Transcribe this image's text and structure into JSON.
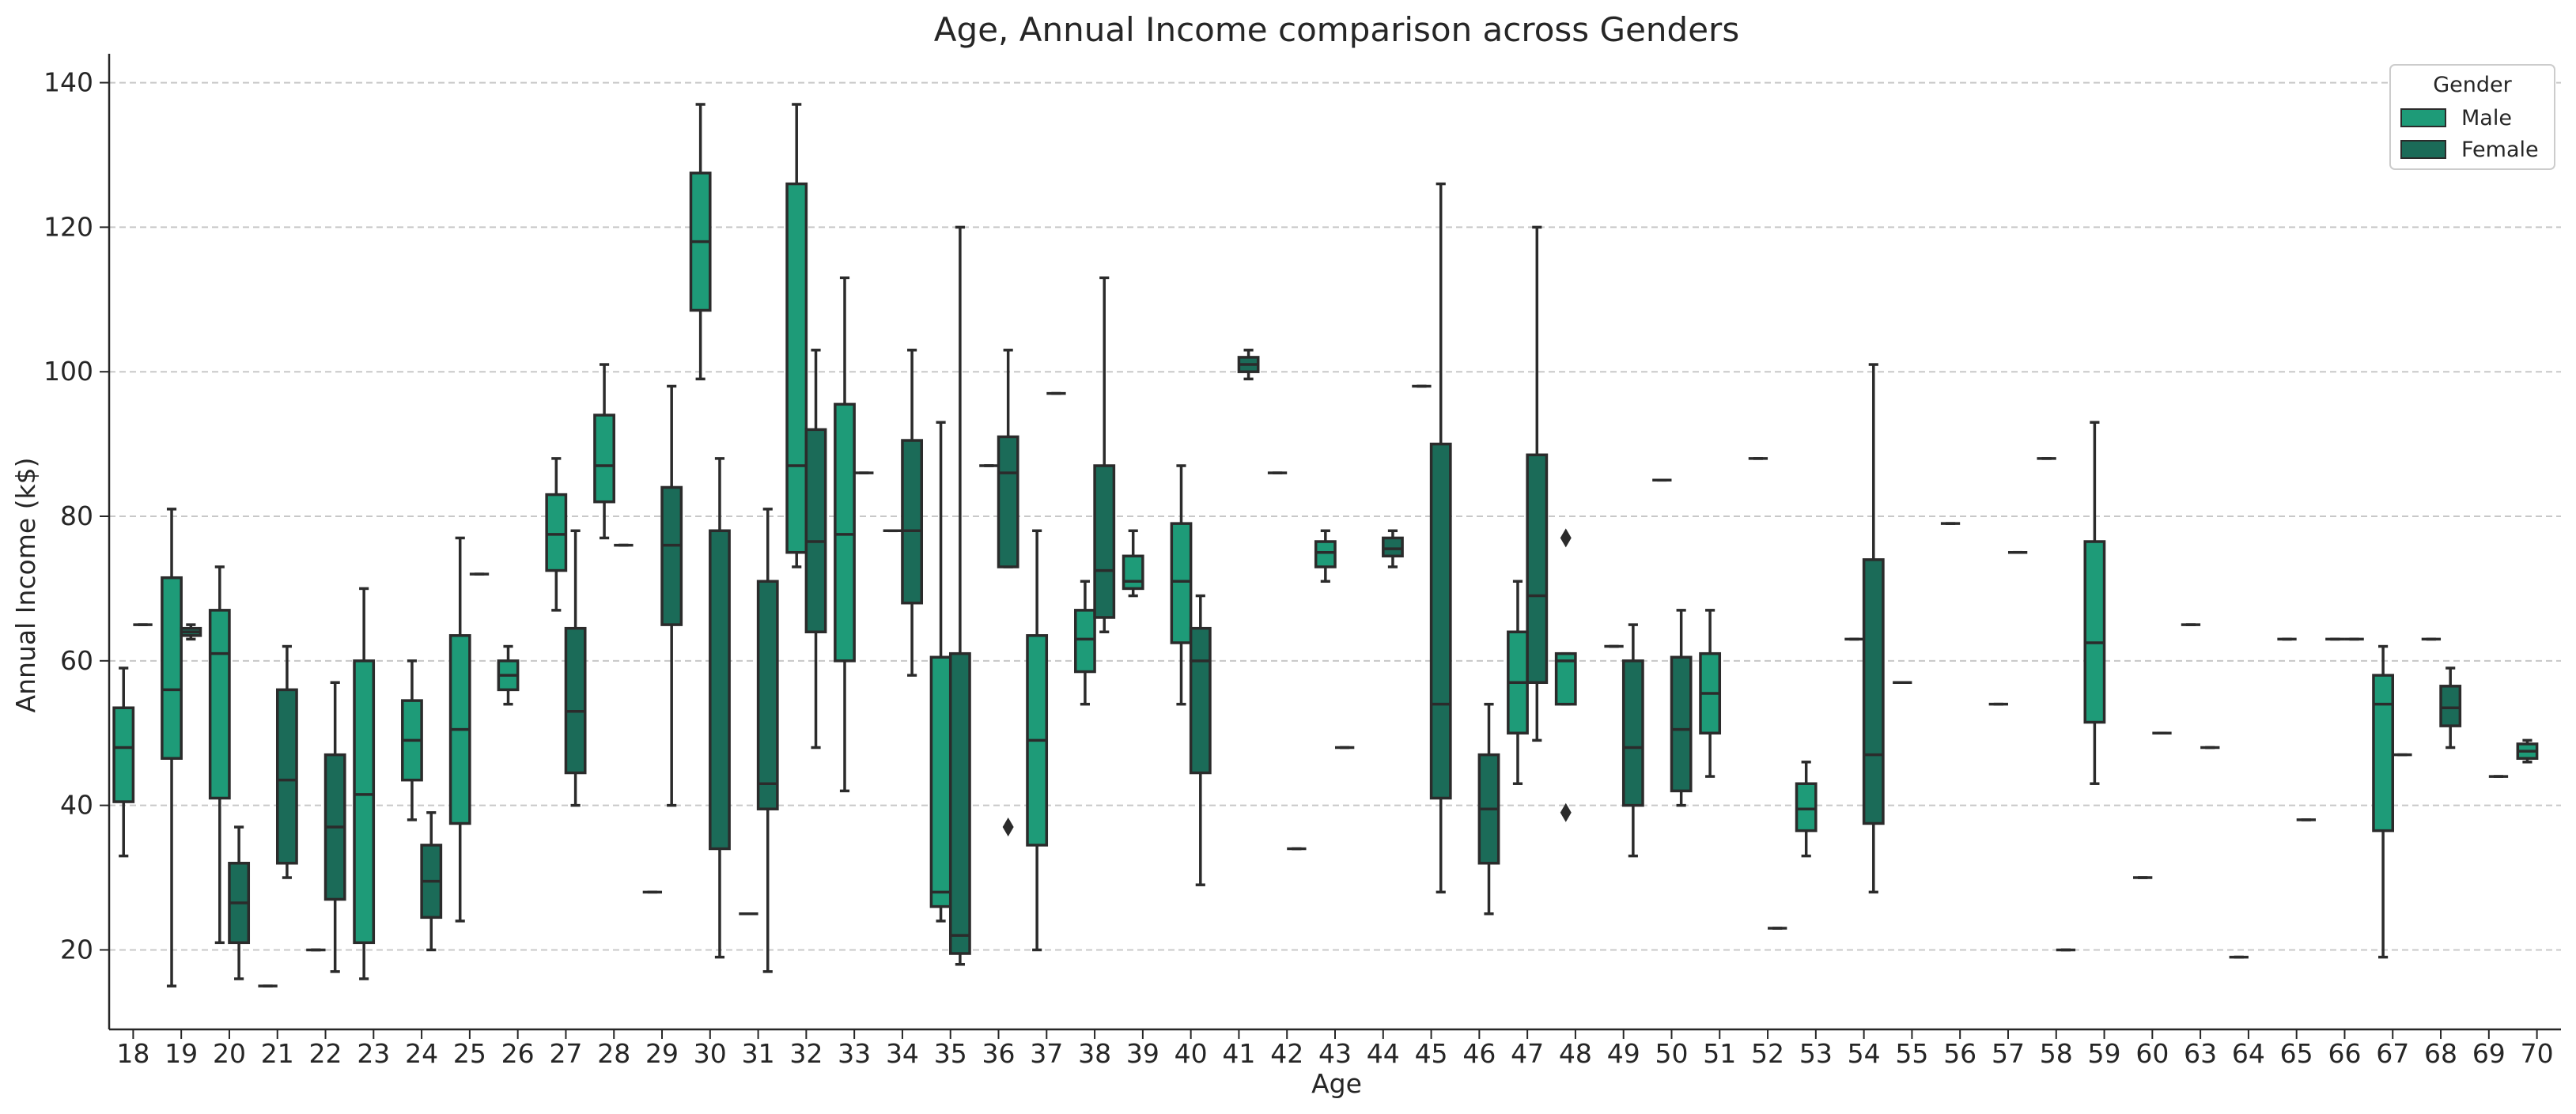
{
  "chart_data": {
    "type": "box",
    "title": "Age, Annual Income comparison across Genders",
    "xlabel": "Age",
    "ylabel": "Annual Income (k$)",
    "ylim": [
      9,
      144
    ],
    "yticks": [
      20,
      40,
      60,
      80,
      100,
      120,
      140
    ],
    "grid": "horizontal dashed",
    "legend": {
      "title": "Gender",
      "position": "top-right",
      "entries": [
        {
          "name": "Male",
          "color": "#1e9b78"
        },
        {
          "name": "Female",
          "color": "#1b6b58"
        }
      ]
    },
    "categories": [
      "18",
      "19",
      "20",
      "21",
      "22",
      "23",
      "24",
      "25",
      "26",
      "27",
      "28",
      "29",
      "30",
      "31",
      "32",
      "33",
      "34",
      "35",
      "36",
      "37",
      "38",
      "39",
      "40",
      "41",
      "42",
      "43",
      "44",
      "45",
      "46",
      "47",
      "48",
      "49",
      "50",
      "51",
      "52",
      "53",
      "54",
      "55",
      "56",
      "57",
      "58",
      "59",
      "60",
      "63",
      "64",
      "65",
      "66",
      "67",
      "68",
      "69",
      "70"
    ],
    "series": [
      {
        "name": "Male",
        "color": "#1e9b78",
        "boxes": [
          {
            "age": "18",
            "whislo": 33,
            "q1": 40.5,
            "med": 48,
            "q3": 53.5,
            "whishi": 59
          },
          {
            "age": "19",
            "whislo": 15,
            "q1": 46.5,
            "med": 56,
            "q3": 71.5,
            "whishi": 81
          },
          {
            "age": "20",
            "whislo": 21,
            "q1": 41,
            "med": 61,
            "q3": 67,
            "whishi": 73
          },
          {
            "age": "21",
            "whislo": 15,
            "q1": 15,
            "med": 15,
            "q3": 15,
            "whishi": 15
          },
          {
            "age": "22",
            "whislo": 20,
            "q1": 20,
            "med": 20,
            "q3": 20,
            "whishi": 20
          },
          {
            "age": "23",
            "whislo": 16,
            "q1": 21,
            "med": 41.5,
            "q3": 60,
            "whishi": 70
          },
          {
            "age": "24",
            "whislo": 38,
            "q1": 43.5,
            "med": 49,
            "q3": 54.5,
            "whishi": 60
          },
          {
            "age": "25",
            "whislo": 24,
            "q1": 37.5,
            "med": 50.5,
            "q3": 63.5,
            "whishi": 77
          },
          {
            "age": "26",
            "whislo": 54,
            "q1": 56,
            "med": 58,
            "q3": 60,
            "whishi": 62
          },
          {
            "age": "27",
            "whislo": 67,
            "q1": 72.5,
            "med": 77.5,
            "q3": 83,
            "whishi": 88
          },
          {
            "age": "28",
            "whislo": 77,
            "q1": 82,
            "med": 87,
            "q3": 94,
            "whishi": 101
          },
          {
            "age": "29",
            "whislo": 28,
            "q1": 28,
            "med": 28,
            "q3": 28,
            "whishi": 28
          },
          {
            "age": "30",
            "whislo": 99,
            "q1": 108.5,
            "med": 118,
            "q3": 127.5,
            "whishi": 137
          },
          {
            "age": "31",
            "whislo": 25,
            "q1": 25,
            "med": 25,
            "q3": 25,
            "whishi": 25
          },
          {
            "age": "32",
            "whislo": 73,
            "q1": 75,
            "med": 87,
            "q3": 126,
            "whishi": 137
          },
          {
            "age": "33",
            "whislo": 42,
            "q1": 60,
            "med": 77.5,
            "q3": 95.5,
            "whishi": 113
          },
          {
            "age": "34",
            "whislo": 78,
            "q1": 78,
            "med": 78,
            "q3": 78,
            "whishi": 78
          },
          {
            "age": "35",
            "whislo": 24,
            "q1": 26,
            "med": 28,
            "q3": 60.5,
            "whishi": 93
          },
          {
            "age": "36",
            "whislo": 87,
            "q1": 87,
            "med": 87,
            "q3": 87,
            "whishi": 87
          },
          {
            "age": "37",
            "whislo": 20,
            "q1": 34.5,
            "med": 49,
            "q3": 63.5,
            "whishi": 78
          },
          {
            "age": "38",
            "whislo": 54,
            "q1": 58.5,
            "med": 63,
            "q3": 67,
            "whishi": 71
          },
          {
            "age": "39",
            "whislo": 69,
            "q1": 70,
            "med": 71,
            "q3": 74.5,
            "whishi": 78
          },
          {
            "age": "40",
            "whislo": 54,
            "q1": 62.5,
            "med": 71,
            "q3": 79,
            "whishi": 87
          },
          {
            "age": "42",
            "whislo": 86,
            "q1": 86,
            "med": 86,
            "q3": 86,
            "whishi": 86
          },
          {
            "age": "43",
            "whislo": 71,
            "q1": 73,
            "med": 75,
            "q3": 76.5,
            "whishi": 78
          },
          {
            "age": "45",
            "whislo": 98,
            "q1": 98,
            "med": 98,
            "q3": 98,
            "whishi": 98
          },
          {
            "age": "47",
            "whislo": 43,
            "q1": 50,
            "med": 57,
            "q3": 64,
            "whishi": 71
          },
          {
            "age": "48",
            "whislo": 54,
            "q1": 54,
            "med": 60,
            "q3": 61,
            "whishi": 61,
            "fliers": [
              39,
              77
            ]
          },
          {
            "age": "49",
            "whislo": 62,
            "q1": 62,
            "med": 62,
            "q3": 62,
            "whishi": 62
          },
          {
            "age": "50",
            "whislo": 85,
            "q1": 85,
            "med": 85,
            "q3": 85,
            "whishi": 85
          },
          {
            "age": "51",
            "whislo": 44,
            "q1": 50,
            "med": 55.5,
            "q3": 61,
            "whishi": 67
          },
          {
            "age": "52",
            "whislo": 88,
            "q1": 88,
            "med": 88,
            "q3": 88,
            "whishi": 88
          },
          {
            "age": "53",
            "whislo": 33,
            "q1": 36.5,
            "med": 39.5,
            "q3": 43,
            "whishi": 46
          },
          {
            "age": "54",
            "whislo": 63,
            "q1": 63,
            "med": 63,
            "q3": 63,
            "whishi": 63
          },
          {
            "age": "55",
            "whislo": 57,
            "q1": 57,
            "med": 57,
            "q3": 57,
            "whishi": 57
          },
          {
            "age": "56",
            "whislo": 79,
            "q1": 79,
            "med": 79,
            "q3": 79,
            "whishi": 79
          },
          {
            "age": "57",
            "whislo": 54,
            "q1": 54,
            "med": 54,
            "q3": 54,
            "whishi": 54
          },
          {
            "age": "58",
            "whislo": 88,
            "q1": 88,
            "med": 88,
            "q3": 88,
            "whishi": 88
          },
          {
            "age": "59",
            "whislo": 43,
            "q1": 51.5,
            "med": 62.5,
            "q3": 76.5,
            "whishi": 93
          },
          {
            "age": "60",
            "whislo": 30,
            "q1": 30,
            "med": 30,
            "q3": 30,
            "whishi": 30
          },
          {
            "age": "63",
            "whislo": 65,
            "q1": 65,
            "med": 65,
            "q3": 65,
            "whishi": 65
          },
          {
            "age": "64",
            "whislo": 19,
            "q1": 19,
            "med": 19,
            "q3": 19,
            "whishi": 19
          },
          {
            "age": "65",
            "whislo": 63,
            "q1": 63,
            "med": 63,
            "q3": 63,
            "whishi": 63
          },
          {
            "age": "66",
            "whislo": 63,
            "q1": 63,
            "med": 63,
            "q3": 63,
            "whishi": 63
          },
          {
            "age": "67",
            "whislo": 19,
            "q1": 36.5,
            "med": 54,
            "q3": 58,
            "whishi": 62
          },
          {
            "age": "68",
            "whislo": 63,
            "q1": 63,
            "med": 63,
            "q3": 63,
            "whishi": 63
          },
          {
            "age": "70",
            "whislo": 46,
            "q1": 46.5,
            "med": 47.5,
            "q3": 48.5,
            "whishi": 49
          }
        ]
      },
      {
        "name": "Female",
        "color": "#1b6b58",
        "boxes": [
          {
            "age": "18",
            "whislo": 65,
            "q1": 65,
            "med": 65,
            "q3": 65,
            "whishi": 65
          },
          {
            "age": "19",
            "whislo": 63,
            "q1": 63.5,
            "med": 64,
            "q3": 64.5,
            "whishi": 65
          },
          {
            "age": "20",
            "whislo": 16,
            "q1": 21,
            "med": 26.5,
            "q3": 32,
            "whishi": 37
          },
          {
            "age": "21",
            "whislo": 30,
            "q1": 32,
            "med": 43.5,
            "q3": 56,
            "whishi": 62
          },
          {
            "age": "22",
            "whislo": 17,
            "q1": 27,
            "med": 37,
            "q3": 47,
            "whishi": 57
          },
          {
            "age": "24",
            "whislo": 20,
            "q1": 24.5,
            "med": 29.5,
            "q3": 34.5,
            "whishi": 39
          },
          {
            "age": "25",
            "whislo": 72,
            "q1": 72,
            "med": 72,
            "q3": 72,
            "whishi": 72
          },
          {
            "age": "27",
            "whislo": 40,
            "q1": 44.5,
            "med": 53,
            "q3": 64.5,
            "whishi": 78
          },
          {
            "age": "28",
            "whislo": 76,
            "q1": 76,
            "med": 76,
            "q3": 76,
            "whishi": 76
          },
          {
            "age": "29",
            "whislo": 40,
            "q1": 65,
            "med": 76,
            "q3": 84,
            "whishi": 98
          },
          {
            "age": "30",
            "whislo": 19,
            "q1": 34,
            "med": 78,
            "q3": 78,
            "whishi": 88
          },
          {
            "age": "31",
            "whislo": 17,
            "q1": 39.5,
            "med": 43,
            "q3": 71,
            "whishi": 81
          },
          {
            "age": "32",
            "whislo": 48,
            "q1": 64,
            "med": 76.5,
            "q3": 92,
            "whishi": 103
          },
          {
            "age": "33",
            "whislo": 86,
            "q1": 86,
            "med": 86,
            "q3": 86,
            "whishi": 86
          },
          {
            "age": "34",
            "whislo": 58,
            "q1": 68,
            "med": 78,
            "q3": 90.5,
            "whishi": 103
          },
          {
            "age": "35",
            "whislo": 18,
            "q1": 19.5,
            "med": 22,
            "q3": 61,
            "whishi": 120
          },
          {
            "age": "36",
            "whislo": 73,
            "q1": 73,
            "med": 86,
            "q3": 91,
            "whishi": 103,
            "fliers": [
              37
            ]
          },
          {
            "age": "37",
            "whislo": 97,
            "q1": 97,
            "med": 97,
            "q3": 97,
            "whishi": 97
          },
          {
            "age": "38",
            "whislo": 64,
            "q1": 66,
            "med": 72.5,
            "q3": 87,
            "whishi": 113
          },
          {
            "age": "40",
            "whislo": 29,
            "q1": 44.5,
            "med": 60,
            "q3": 64.5,
            "whishi": 69
          },
          {
            "age": "41",
            "whislo": 99,
            "q1": 100,
            "med": 101,
            "q3": 102,
            "whishi": 103
          },
          {
            "age": "42",
            "whislo": 34,
            "q1": 34,
            "med": 34,
            "q3": 34,
            "whishi": 34
          },
          {
            "age": "43",
            "whislo": 48,
            "q1": 48,
            "med": 48,
            "q3": 48,
            "whishi": 48
          },
          {
            "age": "44",
            "whislo": 73,
            "q1": 74.5,
            "med": 75.5,
            "q3": 77,
            "whishi": 78
          },
          {
            "age": "45",
            "whislo": 28,
            "q1": 41,
            "med": 54,
            "q3": 90,
            "whishi": 126
          },
          {
            "age": "46",
            "whislo": 25,
            "q1": 32,
            "med": 39.5,
            "q3": 47,
            "whishi": 54
          },
          {
            "age": "47",
            "whislo": 49,
            "q1": 57,
            "med": 69,
            "q3": 88.5,
            "whishi": 120
          },
          {
            "age": "49",
            "whislo": 33,
            "q1": 40,
            "med": 48,
            "q3": 60,
            "whishi": 65
          },
          {
            "age": "50",
            "whislo": 40,
            "q1": 42,
            "med": 50.5,
            "q3": 60.5,
            "whishi": 67
          },
          {
            "age": "52",
            "whislo": 23,
            "q1": 23,
            "med": 23,
            "q3": 23,
            "whishi": 23
          },
          {
            "age": "54",
            "whislo": 28,
            "q1": 37.5,
            "med": 47,
            "q3": 74,
            "whishi": 101
          },
          {
            "age": "57",
            "whislo": 75,
            "q1": 75,
            "med": 75,
            "q3": 75,
            "whishi": 75
          },
          {
            "age": "58",
            "whislo": 20,
            "q1": 20,
            "med": 20,
            "q3": 20,
            "whishi": 20
          },
          {
            "age": "60",
            "whislo": 50,
            "q1": 50,
            "med": 50,
            "q3": 50,
            "whishi": 50
          },
          {
            "age": "63",
            "whislo": 48,
            "q1": 48,
            "med": 48,
            "q3": 48,
            "whishi": 48
          },
          {
            "age": "65",
            "whislo": 38,
            "q1": 38,
            "med": 38,
            "q3": 38,
            "whishi": 38
          },
          {
            "age": "66",
            "whislo": 63,
            "q1": 63,
            "med": 63,
            "q3": 63,
            "whishi": 63
          },
          {
            "age": "67",
            "whislo": 47,
            "q1": 47,
            "med": 47,
            "q3": 47,
            "whishi": 47
          },
          {
            "age": "68",
            "whislo": 48,
            "q1": 51,
            "med": 53.5,
            "q3": 56.5,
            "whishi": 59
          },
          {
            "age": "69",
            "whislo": 44,
            "q1": 44,
            "med": 44,
            "q3": 44,
            "whishi": 44
          }
        ]
      }
    ]
  }
}
